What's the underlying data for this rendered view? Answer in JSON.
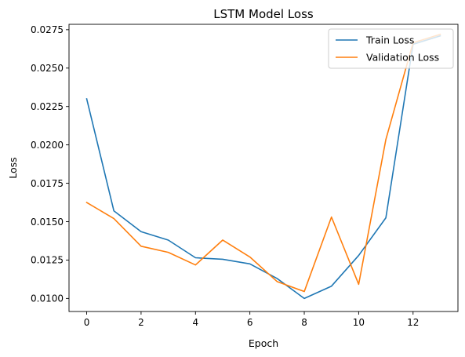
{
  "chart_data": {
    "type": "line",
    "title": "LSTM Model Loss",
    "xlabel": "Epoch",
    "ylabel": "Loss",
    "xlim": [
      -0.65,
      13.65
    ],
    "ylim": [
      0.00915,
      0.02785
    ],
    "xticks": [
      0,
      2,
      4,
      6,
      8,
      10,
      12
    ],
    "yticks": [
      0.01,
      0.0125,
      0.015,
      0.0175,
      0.02,
      0.0225,
      0.025,
      0.0275
    ],
    "xtick_labels": [
      "0",
      "2",
      "4",
      "6",
      "8",
      "10",
      "12"
    ],
    "ytick_labels": [
      "0.0100",
      "0.0125",
      "0.0150",
      "0.0175",
      "0.0200",
      "0.0225",
      "0.0250",
      "0.0275"
    ],
    "grid": false,
    "legend_position": "top-right",
    "x": [
      0,
      1,
      2,
      3,
      4,
      5,
      6,
      7,
      8,
      9,
      10,
      11,
      12,
      13
    ],
    "series": [
      {
        "name": "Train Loss",
        "color": "#1f77b4",
        "values": [
          0.023,
          0.0157,
          0.01435,
          0.0138,
          0.01265,
          0.01255,
          0.01225,
          0.0113,
          0.01,
          0.0108,
          0.0128,
          0.01525,
          0.02655,
          0.0271
        ]
      },
      {
        "name": "Validation Loss",
        "color": "#ff7f0e",
        "values": [
          0.01625,
          0.0152,
          0.0134,
          0.013,
          0.01218,
          0.0138,
          0.0127,
          0.0111,
          0.01045,
          0.0153,
          0.01092,
          0.02035,
          0.02665,
          0.0272
        ]
      }
    ]
  }
}
